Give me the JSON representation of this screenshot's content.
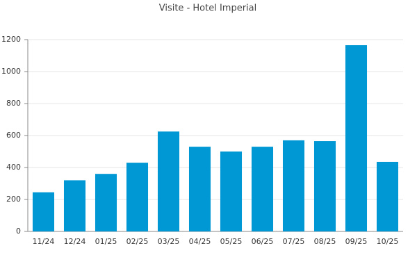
{
  "chart_data": {
    "type": "bar",
    "title": "Visite - Hotel Imperial",
    "categories": [
      "11/24",
      "12/24",
      "01/25",
      "02/25",
      "03/25",
      "04/25",
      "05/25",
      "06/25",
      "07/25",
      "08/25",
      "09/25",
      "10/25"
    ],
    "values": [
      245,
      320,
      360,
      430,
      625,
      530,
      500,
      530,
      570,
      565,
      1165,
      435
    ],
    "color": "#0098d4",
    "ylim": [
      0,
      1200
    ],
    "yticks": [
      0,
      200,
      400,
      600,
      800,
      1000,
      1200
    ],
    "grid": true
  }
}
